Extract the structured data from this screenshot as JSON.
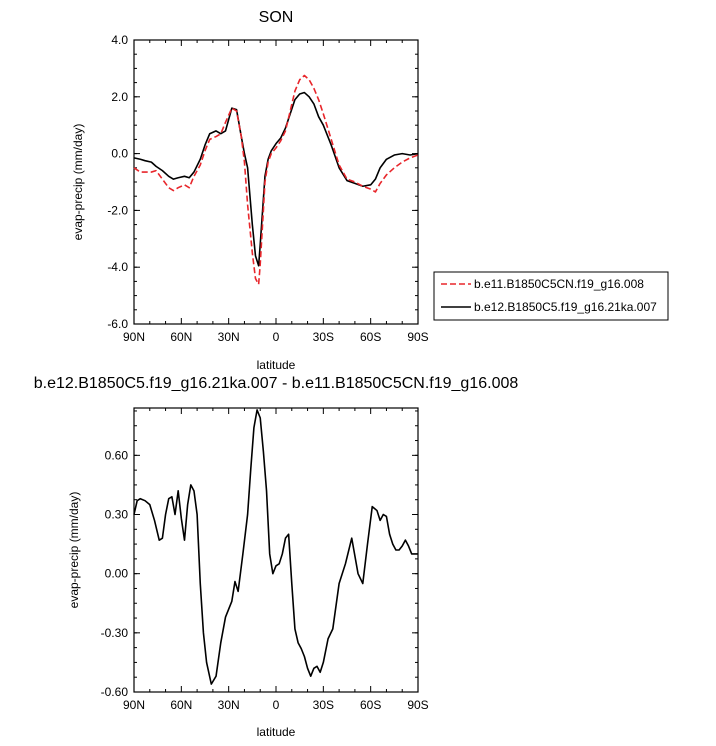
{
  "chart_data": [
    {
      "type": "line",
      "title": "SON",
      "xlabel": "latitude",
      "ylabel": "evap-precip (mm/day)",
      "xlim": [
        90,
        -90
      ],
      "ylim": [
        -6.0,
        4.0
      ],
      "x_ticks": [
        90,
        60,
        30,
        0,
        -30,
        -60,
        -90
      ],
      "x_tick_labels": [
        "90N",
        "60N",
        "30N",
        "0",
        "30S",
        "60S",
        "90S"
      ],
      "y_ticks": [
        -6,
        -4,
        -2,
        0,
        2,
        4
      ],
      "y_tick_labels": [
        "-6.0",
        "-4.0",
        "-2.0",
        "0.0",
        "2.0",
        "4.0"
      ],
      "legend_position": "right, outside the plot",
      "series": [
        {
          "name": "b.e11.B1850C5CN.f19_g16.008",
          "color": "#e8262b",
          "dash": "dashed",
          "x": [
            90,
            86,
            83,
            79,
            76,
            72,
            68,
            65,
            62,
            58,
            55,
            52,
            48,
            45,
            42,
            38,
            35,
            32,
            28,
            25,
            22,
            20,
            18,
            15,
            13,
            11,
            10,
            8,
            7,
            5,
            3,
            0,
            -3,
            -6,
            -9,
            -12,
            -15,
            -18,
            -21,
            -24,
            -27,
            -30,
            -35,
            -40,
            -45,
            -50,
            -55,
            -60,
            -63,
            -66,
            -70,
            -75,
            -80,
            -85,
            -90
          ],
          "values": [
            -0.5,
            -0.65,
            -0.65,
            -0.65,
            -0.6,
            -0.9,
            -1.2,
            -1.3,
            -1.2,
            -1.1,
            -1.2,
            -0.8,
            -0.4,
            0.1,
            0.5,
            0.6,
            0.7,
            1.1,
            1.6,
            1.5,
            0.6,
            -0.3,
            -1.8,
            -3.5,
            -4.4,
            -4.6,
            -3.9,
            -2.0,
            -1.0,
            -0.3,
            0.0,
            0.2,
            0.45,
            0.8,
            1.5,
            2.2,
            2.6,
            2.75,
            2.6,
            2.3,
            1.9,
            1.4,
            0.5,
            -0.4,
            -0.9,
            -1.0,
            -1.15,
            -1.25,
            -1.35,
            -1.05,
            -0.75,
            -0.5,
            -0.3,
            -0.15,
            -0.05
          ]
        },
        {
          "name": "b.e12.B1850C5.f19_g16.21ka.007",
          "color": "#000000",
          "dash": "solid",
          "x": [
            90,
            86,
            83,
            79,
            76,
            72,
            68,
            65,
            62,
            58,
            55,
            52,
            48,
            45,
            42,
            38,
            35,
            32,
            28,
            25,
            22,
            20,
            18,
            15,
            13,
            11,
            10,
            8,
            7,
            5,
            3,
            0,
            -3,
            -6,
            -9,
            -12,
            -15,
            -18,
            -21,
            -24,
            -27,
            -30,
            -35,
            -40,
            -45,
            -50,
            -55,
            -60,
            -63,
            -66,
            -70,
            -75,
            -80,
            -85,
            -90
          ],
          "values": [
            -0.15,
            -0.2,
            -0.25,
            -0.3,
            -0.45,
            -0.6,
            -0.8,
            -0.9,
            -0.85,
            -0.8,
            -0.85,
            -0.65,
            -0.2,
            0.3,
            0.7,
            0.8,
            0.7,
            0.8,
            1.6,
            1.55,
            0.6,
            0.0,
            -0.5,
            -2.5,
            -3.6,
            -3.95,
            -3.2,
            -1.6,
            -0.8,
            -0.2,
            0.1,
            0.35,
            0.55,
            0.9,
            1.4,
            1.9,
            2.1,
            2.15,
            2.0,
            1.75,
            1.3,
            1.0,
            0.3,
            -0.5,
            -0.95,
            -1.05,
            -1.15,
            -1.1,
            -0.9,
            -0.5,
            -0.2,
            -0.05,
            0.0,
            -0.05,
            0.0
          ]
        }
      ]
    },
    {
      "type": "line",
      "title": "b.e12.B1850C5.f19_g16.21ka.007 - b.e11.B1850C5CN.f19_g16.008",
      "xlabel": "latitude",
      "ylabel": "evap-precip (mm/day)",
      "xlim": [
        90,
        -90
      ],
      "ylim": [
        -0.6,
        0.84
      ],
      "x_ticks": [
        90,
        60,
        30,
        0,
        -30,
        -60,
        -90
      ],
      "x_tick_labels": [
        "90N",
        "60N",
        "30N",
        "0",
        "30S",
        "60S",
        "90S"
      ],
      "y_ticks": [
        -0.6,
        -0.3,
        0.0,
        0.3,
        0.6
      ],
      "y_tick_labels": [
        "-0.60",
        "-0.30",
        "0.00",
        "0.30",
        "0.60"
      ],
      "series": [
        {
          "color": "#000000",
          "x": [
            90,
            88,
            86,
            83,
            80,
            77,
            74,
            72,
            70,
            68,
            66,
            64,
            62,
            60,
            58,
            56,
            54,
            52,
            50,
            48,
            46,
            44,
            41,
            38,
            35,
            32,
            30,
            28,
            26,
            24,
            21,
            18,
            16,
            14,
            12,
            10,
            8,
            6,
            4,
            2,
            0,
            -2,
            -4,
            -6,
            -8,
            -10,
            -12,
            -14,
            -16,
            -18,
            -20,
            -22,
            -24,
            -26,
            -28,
            -30,
            -33,
            -36,
            -40,
            -44,
            -48,
            -52,
            -55,
            -58,
            -61,
            -64,
            -66,
            -68,
            -70,
            -72,
            -74,
            -76,
            -78,
            -80,
            -82,
            -84,
            -86,
            -88,
            -90
          ],
          "values": [
            0.3,
            0.37,
            0.38,
            0.37,
            0.35,
            0.27,
            0.17,
            0.18,
            0.3,
            0.38,
            0.39,
            0.3,
            0.42,
            0.28,
            0.17,
            0.35,
            0.45,
            0.42,
            0.3,
            -0.05,
            -0.3,
            -0.45,
            -0.56,
            -0.52,
            -0.35,
            -0.22,
            -0.18,
            -0.14,
            -0.04,
            -0.09,
            0.1,
            0.3,
            0.53,
            0.74,
            0.83,
            0.79,
            0.62,
            0.42,
            0.1,
            0.0,
            0.04,
            0.05,
            0.1,
            0.18,
            0.2,
            -0.05,
            -0.28,
            -0.35,
            -0.38,
            -0.42,
            -0.48,
            -0.52,
            -0.48,
            -0.47,
            -0.5,
            -0.45,
            -0.33,
            -0.28,
            -0.05,
            0.05,
            0.18,
            0.0,
            -0.05,
            0.15,
            0.34,
            0.32,
            0.27,
            0.3,
            0.29,
            0.2,
            0.15,
            0.12,
            0.12,
            0.14,
            0.17,
            0.14,
            0.1,
            0.1,
            0.1
          ]
        }
      ]
    }
  ]
}
